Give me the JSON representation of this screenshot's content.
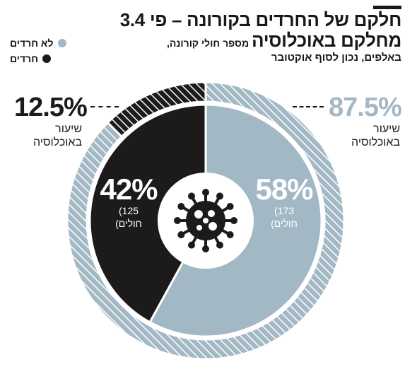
{
  "title": {
    "line1": "חלקם של החרדים בקורונה – פי 3.4",
    "line2_main": "מחלקם באוכלוסיה",
    "line2_sub": " מספר חולי קורונה,",
    "line3": "באלפים, נכון לסוף אוקטובר"
  },
  "legend": [
    {
      "label": "לא חרדים",
      "color": "#a3b8c5"
    },
    {
      "label": "חרדים",
      "color": "#1d1a1b"
    }
  ],
  "population": {
    "haredi": {
      "value": "12.5%",
      "caption1": "שיעור",
      "caption2": "באוכלוסיה"
    },
    "non_haredi": {
      "value": "87.5%",
      "caption1": "שיעור",
      "caption2": "באוכלוסיה"
    }
  },
  "colors": {
    "non_haredi": "#a3b8c5",
    "haredi": "#1d1a1b",
    "center": "#ffffff"
  },
  "icon": "virus-icon",
  "chart_data": {
    "type": "pie",
    "title": "חלקם של החרדים בקורונה – פי 3.4 מחלקם באוכלוסיה",
    "subtitle": "מספר חולי קורונה, באלפים, נכון לסוף אוקטובר",
    "inner_ring": {
      "series_name": "חולים",
      "categories": [
        "לא חרדים",
        "חרדים"
      ],
      "percents": [
        58,
        42
      ],
      "counts": [
        173,
        125
      ],
      "labels": [
        {
          "pct": "58%",
          "count": "173)",
          "unit": "חולים)"
        },
        {
          "pct": "42%",
          "count": "125)",
          "unit": "חולים)"
        }
      ]
    },
    "outer_ring": {
      "series_name": "שיעור באוכלוסיה",
      "categories": [
        "לא חרדים",
        "חרדים"
      ],
      "percents": [
        87.5,
        12.5
      ]
    }
  }
}
